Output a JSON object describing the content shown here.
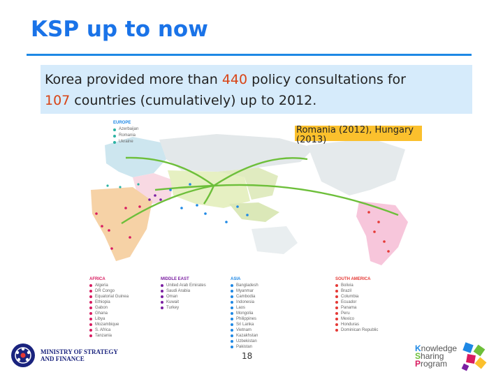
{
  "title": "KSP up to now",
  "callout": {
    "part1": "Korea provided more than ",
    "consultations": "440",
    "part2": " policy consultations for",
    "countries": "107",
    "part3": " countries (cumulatively) up to 2012."
  },
  "map_tag": "Romania (2012), Hungary (2013)",
  "europe_legend": {
    "heading": "EUROPE",
    "items": [
      "Azerbaijan",
      "Romania",
      "Ukraine"
    ]
  },
  "regions": [
    {
      "heading": "AFRICA",
      "items": [
        "Algeria",
        "DR Congo",
        "Equatorial Guinea",
        "Ethiopia",
        "Gabon",
        "Ghana",
        "Libya",
        "Mozambique",
        "S. Africa",
        "Tanzania"
      ]
    },
    {
      "heading": "MIDDLE EAST",
      "items": [
        "United Arab Emirates",
        "Saudi Arabia",
        "Oman",
        "Kuwait",
        "Turkey"
      ]
    },
    {
      "heading": "ASIA",
      "items": [
        "Bangladesh",
        "Myanmar",
        "Cambodia",
        "Indonesia",
        "Laos",
        "Mongolia",
        "Philippines",
        "Sri Lanka",
        "Vietnam",
        "Kazakhstan",
        "Uzbekistan",
        "Pakistan"
      ]
    },
    {
      "heading": "SOUTH AMERICA",
      "items": [
        "Bolivia",
        "Brazil",
        "Columbia",
        "Ecuador",
        "Panama",
        "Peru",
        "Mexico",
        "Honduras",
        "Dominican Republic"
      ]
    }
  ],
  "page_number": "18",
  "ministry": {
    "line1": "MINISTRY OF STRATEGY",
    "line2": "AND FINANCE"
  },
  "ksp_logo": {
    "k": "K",
    "k_rest": "nowledge",
    "s": "S",
    "s_rest": "haring",
    "p": "P",
    "p_rest": "rogram"
  },
  "colors": {
    "title": "#1a73e8",
    "callout_bg": "#d6ebfb",
    "highlight": "#d84315",
    "tag_bg": "#fbc02d",
    "europe": "#2bb3a3",
    "africa": "#d81b60",
    "middle_east": "#7b1fa2",
    "asia": "#1e88e5",
    "south_america": "#e53935"
  }
}
